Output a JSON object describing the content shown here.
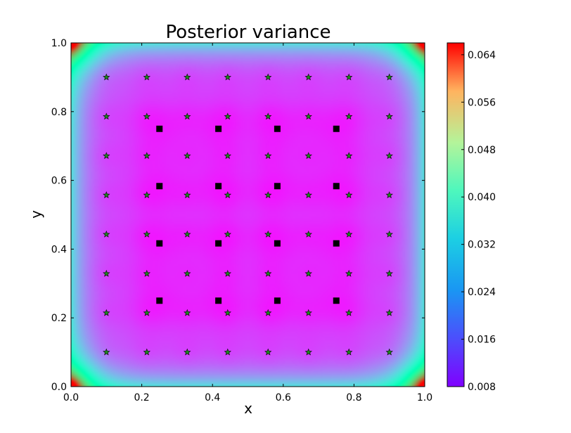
{
  "chart_data": {
    "type": "heatmap",
    "title": "Posterior variance",
    "xlabel": "x",
    "ylabel": "y",
    "xlim": [
      0.0,
      1.0
    ],
    "ylim": [
      0.0,
      1.0
    ],
    "x_ticks": [
      "0.0",
      "0.2",
      "0.4",
      "0.6",
      "0.8",
      "1.0"
    ],
    "y_ticks": [
      "0.0",
      "0.2",
      "0.4",
      "0.6",
      "0.8",
      "1.0"
    ],
    "colormap": "rainbow",
    "colorbar": {
      "range": [
        0.008,
        0.066
      ],
      "ticks": [
        "0.064",
        "0.056",
        "0.048",
        "0.040",
        "0.032",
        "0.024",
        "0.016",
        "0.008"
      ]
    },
    "heatmap_values": {
      "background": 0.013,
      "edge": 0.028,
      "corner": 0.066,
      "min_near_squares": 0.009
    },
    "square_markers": {
      "color": "#000000",
      "x": [
        0.25,
        0.4167,
        0.5833,
        0.75
      ],
      "y": [
        0.25,
        0.4167,
        0.5833,
        0.75
      ]
    },
    "star_markers": {
      "color": "#1e8a1e",
      "x": [
        0.1,
        0.2143,
        0.3286,
        0.4429,
        0.5571,
        0.6714,
        0.7857,
        0.9
      ],
      "y": [
        0.1,
        0.2143,
        0.3286,
        0.4429,
        0.5571,
        0.6714,
        0.7857,
        0.9
      ]
    }
  }
}
